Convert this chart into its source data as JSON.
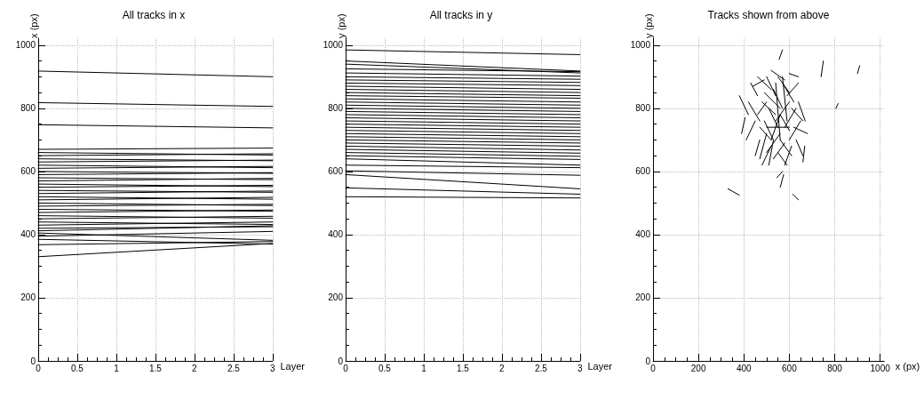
{
  "chart_data": [
    {
      "type": "line",
      "title": "All tracks in x",
      "xlabel": "Layer",
      "ylabel": "x (px)",
      "xlim": [
        0,
        3
      ],
      "xticks": [
        0,
        0.5,
        1,
        1.5,
        2,
        2.5,
        3
      ],
      "ylim": [
        0,
        1022
      ],
      "yticks": [
        0,
        200,
        400,
        600,
        800,
        1000
      ],
      "grid": true,
      "line_style": "solid",
      "series": [
        {
          "color": "#000000",
          "x": [
            0,
            3
          ],
          "values": [
            918,
            900
          ]
        },
        {
          "color": "#000000",
          "x": [
            0,
            3
          ],
          "values": [
            818,
            806
          ]
        },
        {
          "color": "#000000",
          "x": [
            0,
            3
          ],
          "values": [
            748,
            738
          ]
        },
        {
          "color": "#000000",
          "x": [
            0,
            3
          ],
          "values": [
            330,
            372
          ]
        },
        {
          "color": "#000000",
          "x": [
            0,
            3
          ],
          "values": [
            368,
            378
          ]
        },
        {
          "color": "#000000",
          "x": [
            0,
            3
          ],
          "values": [
            385,
            370
          ]
        },
        {
          "color": "#000000",
          "x": [
            0,
            3
          ],
          "values": [
            395,
            410
          ]
        },
        {
          "color": "#000000",
          "x": [
            0,
            3
          ],
          "values": [
            405,
            382
          ]
        },
        {
          "color": "#000000",
          "x": [
            0,
            3
          ],
          "values": [
            412,
            428
          ]
        },
        {
          "color": "#000000",
          "x": [
            0,
            3
          ],
          "values": [
            420,
            425
          ]
        },
        {
          "color": "#000000",
          "x": [
            0,
            3
          ],
          "values": [
            430,
            440
          ]
        },
        {
          "color": "#000000",
          "x": [
            0,
            3
          ],
          "values": [
            440,
            432
          ]
        },
        {
          "color": "#000000",
          "x": [
            0,
            3
          ],
          "values": [
            450,
            458
          ]
        },
        {
          "color": "#000000",
          "x": [
            0,
            3
          ],
          "values": [
            460,
            452
          ]
        },
        {
          "color": "#000000",
          "x": [
            0,
            3
          ],
          "values": [
            470,
            478
          ]
        },
        {
          "color": "#000000",
          "x": [
            0,
            3
          ],
          "values": [
            480,
            474
          ]
        },
        {
          "color": "#000000",
          "x": [
            0,
            3
          ],
          "values": [
            490,
            496
          ]
        },
        {
          "color": "#000000",
          "x": [
            0,
            3
          ],
          "values": [
            500,
            492
          ]
        },
        {
          "color": "#000000",
          "x": [
            0,
            3
          ],
          "values": [
            510,
            518
          ]
        },
        {
          "color": "#000000",
          "x": [
            0,
            3
          ],
          "values": [
            520,
            512
          ]
        },
        {
          "color": "#000000",
          "x": [
            0,
            3
          ],
          "values": [
            530,
            538
          ]
        },
        {
          "color": "#000000",
          "x": [
            0,
            3
          ],
          "values": [
            540,
            534
          ]
        },
        {
          "color": "#000000",
          "x": [
            0,
            3
          ],
          "values": [
            550,
            556
          ]
        },
        {
          "color": "#000000",
          "x": [
            0,
            3
          ],
          "values": [
            560,
            552
          ]
        },
        {
          "color": "#000000",
          "x": [
            0,
            3
          ],
          "values": [
            570,
            578
          ]
        },
        {
          "color": "#000000",
          "x": [
            0,
            3
          ],
          "values": [
            580,
            574
          ]
        },
        {
          "color": "#000000",
          "x": [
            0,
            3
          ],
          "values": [
            590,
            596
          ]
        },
        {
          "color": "#000000",
          "x": [
            0,
            3
          ],
          "values": [
            600,
            594
          ]
        },
        {
          "color": "#000000",
          "x": [
            0,
            3
          ],
          "values": [
            610,
            616
          ]
        },
        {
          "color": "#000000",
          "x": [
            0,
            3
          ],
          "values": [
            620,
            612
          ]
        },
        {
          "color": "#000000",
          "x": [
            0,
            3
          ],
          "values": [
            630,
            636
          ]
        },
        {
          "color": "#000000",
          "x": [
            0,
            3
          ],
          "values": [
            640,
            634
          ]
        },
        {
          "color": "#000000",
          "x": [
            0,
            3
          ],
          "values": [
            650,
            656
          ]
        },
        {
          "color": "#000000",
          "x": [
            0,
            3
          ],
          "values": [
            660,
            652
          ]
        },
        {
          "color": "#000000",
          "x": [
            0,
            3
          ],
          "values": [
            670,
            674
          ]
        }
      ]
    },
    {
      "type": "line",
      "title": "All tracks in y",
      "xlabel": "Layer",
      "ylabel": "y (px)",
      "xlim": [
        0,
        3
      ],
      "xticks": [
        0,
        0.5,
        1,
        1.5,
        2,
        2.5,
        3
      ],
      "ylim": [
        0,
        1022
      ],
      "yticks": [
        0,
        200,
        400,
        600,
        800,
        1000
      ],
      "grid": true,
      "line_style": "solid",
      "series": [
        {
          "color": "#000000",
          "x": [
            0,
            3
          ],
          "values": [
            985,
            970
          ]
        },
        {
          "color": "#000000",
          "x": [
            0,
            3
          ],
          "values": [
            950,
            918
          ]
        },
        {
          "color": "#000000",
          "x": [
            0,
            3
          ],
          "values": [
            940,
            912
          ]
        },
        {
          "color": "#000000",
          "x": [
            0,
            3
          ],
          "values": [
            925,
            916
          ]
        },
        {
          "color": "#000000",
          "x": [
            0,
            3
          ],
          "values": [
            912,
            902
          ]
        },
        {
          "color": "#000000",
          "x": [
            0,
            3
          ],
          "values": [
            900,
            892
          ]
        },
        {
          "color": "#000000",
          "x": [
            0,
            3
          ],
          "values": [
            890,
            882
          ]
        },
        {
          "color": "#000000",
          "x": [
            0,
            3
          ],
          "values": [
            880,
            872
          ]
        },
        {
          "color": "#000000",
          "x": [
            0,
            3
          ],
          "values": [
            870,
            860
          ]
        },
        {
          "color": "#000000",
          "x": [
            0,
            3
          ],
          "values": [
            860,
            850
          ]
        },
        {
          "color": "#000000",
          "x": [
            0,
            3
          ],
          "values": [
            850,
            840
          ]
        },
        {
          "color": "#000000",
          "x": [
            0,
            3
          ],
          "values": [
            840,
            832
          ]
        },
        {
          "color": "#000000",
          "x": [
            0,
            3
          ],
          "values": [
            830,
            820
          ]
        },
        {
          "color": "#000000",
          "x": [
            0,
            3
          ],
          "values": [
            820,
            810
          ]
        },
        {
          "color": "#000000",
          "x": [
            0,
            3
          ],
          "values": [
            810,
            800
          ]
        },
        {
          "color": "#000000",
          "x": [
            0,
            3
          ],
          "values": [
            800,
            790
          ]
        },
        {
          "color": "#000000",
          "x": [
            0,
            3
          ],
          "values": [
            790,
            780
          ]
        },
        {
          "color": "#000000",
          "x": [
            0,
            3
          ],
          "values": [
            780,
            770
          ]
        },
        {
          "color": "#000000",
          "x": [
            0,
            3
          ],
          "values": [
            770,
            760
          ]
        },
        {
          "color": "#000000",
          "x": [
            0,
            3
          ],
          "values": [
            760,
            750
          ]
        },
        {
          "color": "#000000",
          "x": [
            0,
            3
          ],
          "values": [
            750,
            740
          ]
        },
        {
          "color": "#000000",
          "x": [
            0,
            3
          ],
          "values": [
            740,
            730
          ]
        },
        {
          "color": "#000000",
          "x": [
            0,
            3
          ],
          "values": [
            730,
            720
          ]
        },
        {
          "color": "#000000",
          "x": [
            0,
            3
          ],
          "values": [
            720,
            710
          ]
        },
        {
          "color": "#000000",
          "x": [
            0,
            3
          ],
          "values": [
            710,
            700
          ]
        },
        {
          "color": "#000000",
          "x": [
            0,
            3
          ],
          "values": [
            700,
            690
          ]
        },
        {
          "color": "#000000",
          "x": [
            0,
            3
          ],
          "values": [
            690,
            680
          ]
        },
        {
          "color": "#000000",
          "x": [
            0,
            3
          ],
          "values": [
            680,
            668
          ]
        },
        {
          "color": "#000000",
          "x": [
            0,
            3
          ],
          "values": [
            670,
            658
          ]
        },
        {
          "color": "#000000",
          "x": [
            0,
            3
          ],
          "values": [
            660,
            648
          ]
        },
        {
          "color": "#000000",
          "x": [
            0,
            3
          ],
          "values": [
            650,
            638
          ]
        },
        {
          "color": "#000000",
          "x": [
            0,
            3
          ],
          "values": [
            640,
            620
          ]
        },
        {
          "color": "#000000",
          "x": [
            0,
            3
          ],
          "values": [
            620,
            612
          ]
        },
        {
          "color": "#000000",
          "x": [
            0,
            3
          ],
          "values": [
            602,
            588
          ]
        },
        {
          "color": "#000000",
          "x": [
            0,
            3
          ],
          "values": [
            590,
            545
          ]
        },
        {
          "color": "#000000",
          "x": [
            0,
            3
          ],
          "values": [
            548,
            528
          ]
        },
        {
          "color": "#000000",
          "x": [
            0,
            3
          ],
          "values": [
            520,
            516
          ]
        }
      ]
    },
    {
      "type": "line",
      "title": "Tracks shown from above",
      "xlabel": "x (px)",
      "ylabel": "y (px)",
      "xlim": [
        0,
        1018
      ],
      "xticks": [
        0,
        200,
        400,
        600,
        800,
        1000
      ],
      "ylim": [
        0,
        1022
      ],
      "yticks": [
        0,
        200,
        400,
        600,
        800,
        1000
      ],
      "grid": true,
      "line_style": "solid",
      "series": [
        {
          "color": "#000000",
          "x": [
            555,
            570
          ],
          "values": [
            955,
            985
          ]
        },
        {
          "color": "#000000",
          "x": [
            740,
            750
          ],
          "values": [
            900,
            950
          ]
        },
        {
          "color": "#000000",
          "x": [
            900,
            910
          ],
          "values": [
            910,
            935
          ]
        },
        {
          "color": "#000000",
          "x": [
            805,
            815
          ],
          "values": [
            800,
            815
          ]
        },
        {
          "color": "#000000",
          "x": [
            330,
            380
          ],
          "values": [
            545,
            525
          ]
        },
        {
          "color": "#000000",
          "x": [
            545,
            570
          ],
          "values": [
            580,
            600
          ]
        },
        {
          "color": "#000000",
          "x": [
            560,
            575
          ],
          "values": [
            550,
            590
          ]
        },
        {
          "color": "#000000",
          "x": [
            615,
            640
          ],
          "values": [
            528,
            510
          ]
        },
        {
          "color": "#000000",
          "x": [
            380,
            420
          ],
          "values": [
            840,
            780
          ]
        },
        {
          "color": "#000000",
          "x": [
            390,
            405
          ],
          "values": [
            720,
            770
          ]
        },
        {
          "color": "#000000",
          "x": [
            410,
            450
          ],
          "values": [
            700,
            760
          ]
        },
        {
          "color": "#000000",
          "x": [
            420,
            470
          ],
          "values": [
            820,
            760
          ]
        },
        {
          "color": "#000000",
          "x": [
            430,
            460
          ],
          "values": [
            880,
            840
          ]
        },
        {
          "color": "#000000",
          "x": [
            440,
            490
          ],
          "values": [
            870,
            890
          ]
        },
        {
          "color": "#000000",
          "x": [
            450,
            470
          ],
          "values": [
            650,
            700
          ]
        },
        {
          "color": "#000000",
          "x": [
            460,
            520
          ],
          "values": [
            900,
            860
          ]
        },
        {
          "color": "#000000",
          "x": [
            470,
            500
          ],
          "values": [
            640,
            720
          ]
        },
        {
          "color": "#000000",
          "x": [
            480,
            520
          ],
          "values": [
            620,
            680
          ]
        },
        {
          "color": "#000000",
          "x": [
            480,
            540
          ],
          "values": [
            820,
            780
          ]
        },
        {
          "color": "#000000",
          "x": [
            490,
            530
          ],
          "values": [
            760,
            700
          ]
        },
        {
          "color": "#000000",
          "x": [
            500,
            540
          ],
          "values": [
            900,
            840
          ]
        },
        {
          "color": "#000000",
          "x": [
            500,
            560
          ],
          "values": [
            660,
            720
          ]
        },
        {
          "color": "#000000",
          "x": [
            510,
            550
          ],
          "values": [
            800,
            740
          ]
        },
        {
          "color": "#000000",
          "x": [
            520,
            580
          ],
          "values": [
            920,
            890
          ]
        },
        {
          "color": "#000000",
          "x": [
            520,
            560
          ],
          "values": [
            700,
            780
          ]
        },
        {
          "color": "#000000",
          "x": [
            530,
            570
          ],
          "values": [
            860,
            800
          ]
        },
        {
          "color": "#000000",
          "x": [
            530,
            580
          ],
          "values": [
            640,
            690
          ]
        },
        {
          "color": "#000000",
          "x": [
            540,
            600
          ],
          "values": [
            760,
            820
          ]
        },
        {
          "color": "#000000",
          "x": [
            550,
            600
          ],
          "values": [
            900,
            850
          ]
        },
        {
          "color": "#000000",
          "x": [
            560,
            610
          ],
          "values": [
            700,
            650
          ]
        },
        {
          "color": "#000000",
          "x": [
            560,
            600
          ],
          "values": [
            780,
            730
          ]
        },
        {
          "color": "#000000",
          "x": [
            570,
            620
          ],
          "values": [
            880,
            820
          ]
        },
        {
          "color": "#000000",
          "x": [
            580,
            630
          ],
          "values": [
            740,
            800
          ]
        },
        {
          "color": "#000000",
          "x": [
            580,
            610
          ],
          "values": [
            620,
            680
          ]
        },
        {
          "color": "#000000",
          "x": [
            590,
            640
          ],
          "values": [
            840,
            880
          ]
        },
        {
          "color": "#000000",
          "x": [
            600,
            650
          ],
          "values": [
            700,
            760
          ]
        },
        {
          "color": "#000000",
          "x": [
            610,
            660
          ],
          "values": [
            800,
            760
          ]
        },
        {
          "color": "#000000",
          "x": [
            620,
            680
          ],
          "values": [
            740,
            720
          ]
        },
        {
          "color": "#000000",
          "x": [
            630,
            660
          ],
          "values": [
            700,
            650
          ]
        },
        {
          "color": "#000000",
          "x": [
            640,
            670
          ],
          "values": [
            820,
            760
          ]
        },
        {
          "color": "#000000",
          "x": [
            660,
            668
          ],
          "values": [
            630,
            680
          ]
        },
        {
          "color": "#000000",
          "x": [
            600,
            640
          ],
          "values": [
            910,
            900
          ]
        },
        {
          "color": "#000000",
          "x": [
            460,
            500
          ],
          "values": [
            780,
            820
          ]
        },
        {
          "color": "#000000",
          "x": [
            470,
            520
          ],
          "values": [
            740,
            700
          ]
        },
        {
          "color": "#000000",
          "x": [
            490,
            560
          ],
          "values": [
            850,
            800
          ]
        },
        {
          "color": "#000000",
          "x": [
            510,
            530
          ],
          "values": [
            620,
            700
          ]
        },
        {
          "color": "#000000",
          "x": [
            540,
            560
          ],
          "values": [
            880,
            700
          ]
        },
        {
          "color": "#000000",
          "x": [
            550,
            590
          ],
          "values": [
            660,
            620
          ]
        },
        {
          "color": "#000000",
          "x": [
            570,
            590
          ],
          "values": [
            900,
            760
          ]
        },
        {
          "color": "#000000",
          "x": [
            500,
            600
          ],
          "values": [
            740,
            740
          ]
        }
      ]
    }
  ]
}
